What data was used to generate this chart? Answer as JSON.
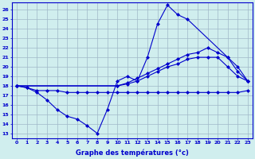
{
  "title": "Graphe des températures (°c)",
  "background_color": "#d0eeee",
  "grid_color": "#a0b8c8",
  "line_color": "#0000cc",
  "x_hours": [
    0,
    1,
    2,
    3,
    4,
    5,
    6,
    7,
    8,
    9,
    10,
    11,
    12,
    13,
    14,
    15,
    16,
    17,
    18,
    19,
    20,
    21,
    22,
    23
  ],
  "ylim_min": 12.5,
  "ylim_max": 26.8,
  "yticks": [
    13,
    14,
    15,
    16,
    17,
    18,
    19,
    20,
    21,
    22,
    23,
    24,
    25,
    26
  ],
  "series": [
    {
      "x": [
        0,
        1,
        2,
        3,
        4,
        5,
        6,
        7,
        8,
        9,
        10,
        11,
        12,
        13,
        14,
        15,
        16,
        17,
        21,
        22,
        23
      ],
      "y": [
        18.0,
        17.8,
        17.3,
        16.5,
        15.5,
        14.8,
        14.5,
        13.8,
        13.0,
        15.5,
        18.5,
        19.0,
        18.5,
        21.0,
        24.5,
        26.5,
        25.5,
        25.0,
        21.0,
        19.5,
        18.5
      ]
    },
    {
      "x": [
        0,
        10,
        11,
        12,
        13,
        14,
        15,
        16,
        17,
        18,
        19,
        20,
        21,
        22,
        23
      ],
      "y": [
        18.0,
        18.0,
        18.3,
        18.8,
        19.3,
        19.8,
        20.3,
        20.8,
        21.3,
        21.5,
        22.0,
        21.5,
        21.0,
        20.0,
        18.5
      ]
    },
    {
      "x": [
        0,
        10,
        11,
        12,
        13,
        14,
        15,
        16,
        17,
        18,
        19,
        20,
        21,
        22,
        23
      ],
      "y": [
        18.0,
        18.0,
        18.2,
        18.5,
        19.0,
        19.5,
        20.0,
        20.3,
        20.8,
        21.0,
        21.0,
        21.0,
        20.0,
        19.0,
        18.5
      ]
    },
    {
      "x": [
        0,
        1,
        2,
        3,
        4,
        5,
        6,
        7,
        8,
        9,
        10,
        11,
        12,
        13,
        14,
        15,
        16,
        17,
        18,
        19,
        20,
        21,
        22,
        23
      ],
      "y": [
        18.0,
        17.8,
        17.5,
        17.5,
        17.5,
        17.3,
        17.3,
        17.3,
        17.3,
        17.3,
        17.3,
        17.3,
        17.3,
        17.3,
        17.3,
        17.3,
        17.3,
        17.3,
        17.3,
        17.3,
        17.3,
        17.3,
        17.3,
        17.5
      ]
    }
  ]
}
